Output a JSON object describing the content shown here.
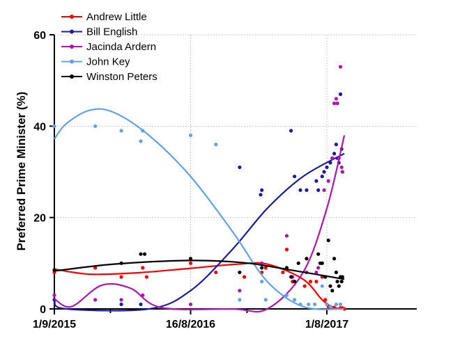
{
  "chart_data": {
    "type": "scatter",
    "ylabel": "Preferred Prime Minister  (%)",
    "xlabel": "",
    "title": "",
    "x_axis": {
      "kind": "date",
      "range": [
        "2015-09-01",
        "2018-03-20"
      ],
      "ticks": [
        {
          "date": "2015-09-01",
          "label": "1/9/2015"
        },
        {
          "date": "2016-08-16",
          "label": "16/8/2016"
        },
        {
          "date": "2017-08-01",
          "label": "1/8/2017"
        }
      ],
      "minor_ticks": [
        "2016-01-23",
        "2017-01-08"
      ]
    },
    "ylim": [
      0,
      60
    ],
    "yticks": [
      0,
      20,
      40,
      60
    ],
    "grid": true,
    "legend_position": "top-left",
    "series": [
      {
        "name": "Andrew Little",
        "color": "#ff0000",
        "points": [
          [
            "2015-09-01",
            8
          ],
          [
            "2015-12-15",
            9
          ],
          [
            "2016-02-20",
            7
          ],
          [
            "2016-04-15",
            9
          ],
          [
            "2016-04-25",
            7
          ],
          [
            "2016-08-16",
            10
          ],
          [
            "2016-10-20",
            8
          ],
          [
            "2017-01-01",
            7
          ],
          [
            "2017-02-15",
            8
          ],
          [
            "2017-02-25",
            9
          ],
          [
            "2017-04-10",
            8
          ],
          [
            "2017-04-20",
            13
          ],
          [
            "2017-05-05",
            6
          ],
          [
            "2017-06-05",
            5
          ],
          [
            "2017-06-20",
            6
          ],
          [
            "2017-07-05",
            6
          ],
          [
            "2017-07-20",
            7
          ],
          [
            "2017-07-28",
            2
          ],
          [
            "2017-08-05",
            0.5
          ],
          [
            "2017-08-20",
            0.3
          ],
          [
            "2017-09-05",
            0.2
          ],
          [
            "2017-09-10",
            0.2
          ],
          [
            "2017-09-15",
            0
          ]
        ],
        "trend": [
          [
            "2015-09-01",
            8.7
          ],
          [
            "2015-12-01",
            7.6
          ],
          [
            "2016-04-01",
            7.9
          ],
          [
            "2016-08-16",
            8.9
          ],
          [
            "2016-12-15",
            9.8
          ],
          [
            "2017-03-01",
            9.8
          ],
          [
            "2017-06-01",
            6.5
          ],
          [
            "2017-07-20",
            2.0
          ],
          [
            "2017-08-20",
            0.3
          ],
          [
            "2017-09-20",
            0
          ]
        ]
      },
      {
        "name": "Bill English",
        "color": "#1a1aa6",
        "points": [
          [
            "2015-09-01",
            2
          ],
          [
            "2016-02-20",
            1
          ],
          [
            "2016-04-10",
            1
          ],
          [
            "2016-12-20",
            31
          ],
          [
            "2017-02-12",
            25
          ],
          [
            "2017-02-15",
            26
          ],
          [
            "2017-05-01",
            39
          ],
          [
            "2017-05-10",
            29
          ],
          [
            "2017-05-25",
            26
          ],
          [
            "2017-06-10",
            26
          ],
          [
            "2017-07-05",
            28
          ],
          [
            "2017-07-10",
            26
          ],
          [
            "2017-07-20",
            29
          ],
          [
            "2017-07-25",
            30
          ],
          [
            "2017-08-01",
            31
          ],
          [
            "2017-08-10",
            32
          ],
          [
            "2017-08-15",
            33
          ],
          [
            "2017-08-20",
            34
          ],
          [
            "2017-08-25",
            36
          ],
          [
            "2017-08-28",
            33
          ],
          [
            "2017-09-01",
            32
          ],
          [
            "2017-09-05",
            47
          ],
          [
            "2017-09-08",
            35
          ],
          [
            "2017-09-10",
            30
          ]
        ],
        "trend": [
          [
            "2015-09-01",
            1.8
          ],
          [
            "2015-10-01",
            0
          ],
          [
            "2016-05-01",
            0
          ],
          [
            "2016-08-16",
            4
          ],
          [
            "2016-12-01",
            13
          ],
          [
            "2017-03-01",
            22
          ],
          [
            "2017-06-01",
            29
          ],
          [
            "2017-09-15",
            34
          ]
        ]
      },
      {
        "name": "Jacinda Ardern",
        "color": "#b312b3",
        "points": [
          [
            "2015-09-01",
            3
          ],
          [
            "2015-12-15",
            2
          ],
          [
            "2016-02-20",
            2
          ],
          [
            "2016-04-15",
            3
          ],
          [
            "2016-08-16",
            1
          ],
          [
            "2016-12-20",
            4
          ],
          [
            "2017-02-15",
            10
          ],
          [
            "2017-04-20",
            16
          ],
          [
            "2017-05-05",
            7
          ],
          [
            "2017-06-10",
            8
          ],
          [
            "2017-07-05",
            8
          ],
          [
            "2017-07-10",
            9
          ],
          [
            "2017-07-25",
            26
          ],
          [
            "2017-08-05",
            28
          ],
          [
            "2017-08-15",
            33
          ],
          [
            "2017-08-20",
            45
          ],
          [
            "2017-08-25",
            46
          ],
          [
            "2017-08-28",
            45
          ],
          [
            "2017-09-01",
            33
          ],
          [
            "2017-09-05",
            53
          ],
          [
            "2017-09-08",
            31
          ],
          [
            "2017-09-10",
            30
          ]
        ],
        "trend": [
          [
            "2015-09-01",
            2.2
          ],
          [
            "2015-10-15",
            0.5
          ],
          [
            "2016-01-01",
            5.2
          ],
          [
            "2016-03-15",
            4.5
          ],
          [
            "2016-06-01",
            0.3
          ],
          [
            "2016-12-01",
            0
          ],
          [
            "2017-03-01",
            0
          ],
          [
            "2017-06-01",
            8
          ],
          [
            "2017-08-01",
            22
          ],
          [
            "2017-09-15",
            38
          ]
        ]
      },
      {
        "name": "John Key",
        "color": "#5fa3ec",
        "points": [
          [
            "2015-09-01",
            40
          ],
          [
            "2015-12-15",
            40
          ],
          [
            "2016-02-20",
            39
          ],
          [
            "2016-04-10",
            36.7
          ],
          [
            "2016-04-15",
            39
          ],
          [
            "2016-08-16",
            38
          ],
          [
            "2016-10-20",
            36
          ],
          [
            "2016-12-20",
            2
          ],
          [
            "2017-02-15",
            6
          ],
          [
            "2017-02-25",
            2
          ],
          [
            "2017-04-20",
            3
          ],
          [
            "2017-05-10",
            2
          ],
          [
            "2017-05-25",
            1
          ],
          [
            "2017-06-15",
            1
          ],
          [
            "2017-07-01",
            1
          ],
          [
            "2017-07-20",
            5
          ],
          [
            "2017-08-01",
            1
          ],
          [
            "2017-08-10",
            0.5
          ],
          [
            "2017-08-25",
            1
          ],
          [
            "2017-09-05",
            1
          ]
        ],
        "trend": [
          [
            "2015-09-01",
            37.2
          ],
          [
            "2015-10-01",
            40.5
          ],
          [
            "2015-12-01",
            43.5
          ],
          [
            "2016-02-01",
            43
          ],
          [
            "2016-05-01",
            38
          ],
          [
            "2016-08-16",
            29
          ],
          [
            "2016-12-01",
            17
          ],
          [
            "2017-03-01",
            6
          ],
          [
            "2017-06-01",
            0.5
          ],
          [
            "2017-09-15",
            0
          ]
        ]
      },
      {
        "name": "Winston Peters",
        "color": "#000000",
        "points": [
          [
            "2015-09-01",
            8.5
          ],
          [
            "2016-02-20",
            10
          ],
          [
            "2016-04-10",
            12
          ],
          [
            "2016-04-20",
            12
          ],
          [
            "2016-08-16",
            11
          ],
          [
            "2016-12-20",
            8
          ],
          [
            "2017-02-15",
            9
          ],
          [
            "2017-04-20",
            9
          ],
          [
            "2017-05-01",
            7
          ],
          [
            "2017-05-10",
            6
          ],
          [
            "2017-05-20",
            10
          ],
          [
            "2017-06-10",
            11
          ],
          [
            "2017-07-10",
            12
          ],
          [
            "2017-07-15",
            10
          ],
          [
            "2017-07-20",
            10
          ],
          [
            "2017-07-28",
            7
          ],
          [
            "2017-08-05",
            15
          ],
          [
            "2017-08-10",
            5
          ],
          [
            "2017-08-15",
            4
          ],
          [
            "2017-08-20",
            11
          ],
          [
            "2017-08-25",
            8
          ],
          [
            "2017-08-28",
            6
          ],
          [
            "2017-09-01",
            5
          ],
          [
            "2017-09-05",
            7
          ],
          [
            "2017-09-08",
            6
          ],
          [
            "2017-09-10",
            7
          ]
        ],
        "trend": [
          [
            "2015-09-01",
            8.3
          ],
          [
            "2016-02-01",
            9.8
          ],
          [
            "2016-08-16",
            10.6
          ],
          [
            "2017-01-01",
            10.1
          ],
          [
            "2017-05-01",
            8.5
          ],
          [
            "2017-09-15",
            6.5
          ]
        ]
      }
    ]
  }
}
